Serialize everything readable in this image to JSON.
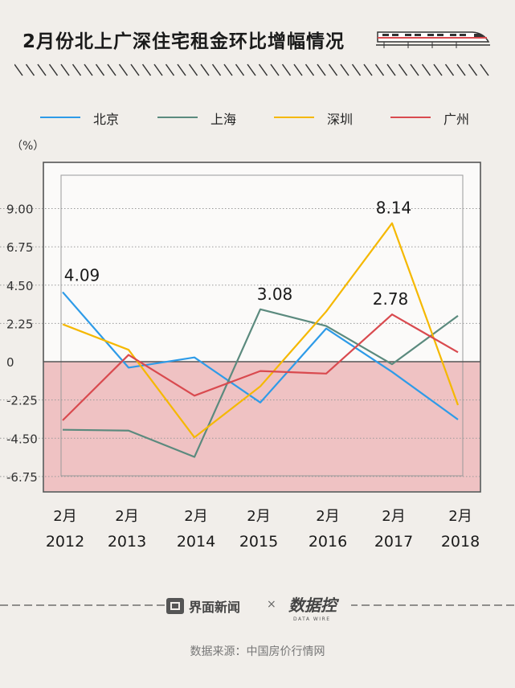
{
  "header": {
    "title": "2月份北上广深住宅租金环比增幅情况"
  },
  "legend": {
    "items": [
      {
        "label": "北京",
        "color": "#2e9be8"
      },
      {
        "label": "上海",
        "color": "#5b8a7e"
      },
      {
        "label": "深圳",
        "color": "#f5b800"
      },
      {
        "label": "广州",
        "color": "#d94a4f"
      }
    ]
  },
  "unit_label": "（%）",
  "chart_data": {
    "type": "line",
    "categories": [
      "2012",
      "2013",
      "2014",
      "2015",
      "2016",
      "2017",
      "2018"
    ],
    "x_tick_month": "2月",
    "ylim": [
      -7.5,
      11.5
    ],
    "yticks": [
      {
        "value": 9.0,
        "label": "9.00"
      },
      {
        "value": 6.75,
        "label": "6.75"
      },
      {
        "value": 4.5,
        "label": "4.50"
      },
      {
        "value": 2.25,
        "label": "2.25"
      },
      {
        "value": 0,
        "label": "0"
      },
      {
        "value": -2.25,
        "label": "-2.25"
      },
      {
        "value": -4.5,
        "label": "-4.50"
      },
      {
        "value": -6.75,
        "label": "-6.75"
      }
    ],
    "negative_region_color": "#efc2c3",
    "series": [
      {
        "name": "北京",
        "color": "#2e9be8",
        "values": [
          4.09,
          -0.35,
          0.25,
          -2.4,
          1.95,
          -0.6,
          -3.4
        ]
      },
      {
        "name": "上海",
        "color": "#5b8a7e",
        "values": [
          -4.0,
          -4.05,
          -5.6,
          3.08,
          2.1,
          -0.15,
          2.7
        ]
      },
      {
        "name": "深圳",
        "color": "#f5b800",
        "values": [
          2.2,
          0.7,
          -4.45,
          -1.45,
          2.95,
          8.14,
          -2.55
        ]
      },
      {
        "name": "广州",
        "color": "#d94a4f",
        "values": [
          -3.45,
          0.4,
          -2.0,
          -0.55,
          -0.7,
          2.78,
          0.55
        ]
      }
    ],
    "annotations": [
      {
        "label": "4.09",
        "category": "2012",
        "value": 4.09
      },
      {
        "label": "3.08",
        "category": "2015",
        "value": 3.08
      },
      {
        "label": "8.14",
        "category": "2017",
        "value": 8.14
      },
      {
        "label": "2.78",
        "category": "2017",
        "value": 2.78
      }
    ]
  },
  "footer": {
    "brand": "界面新闻",
    "separator": "×",
    "partner_logo": "数据控",
    "partner_sub": "DATA WIRE",
    "source": "数据来源：中国房价行情网"
  }
}
